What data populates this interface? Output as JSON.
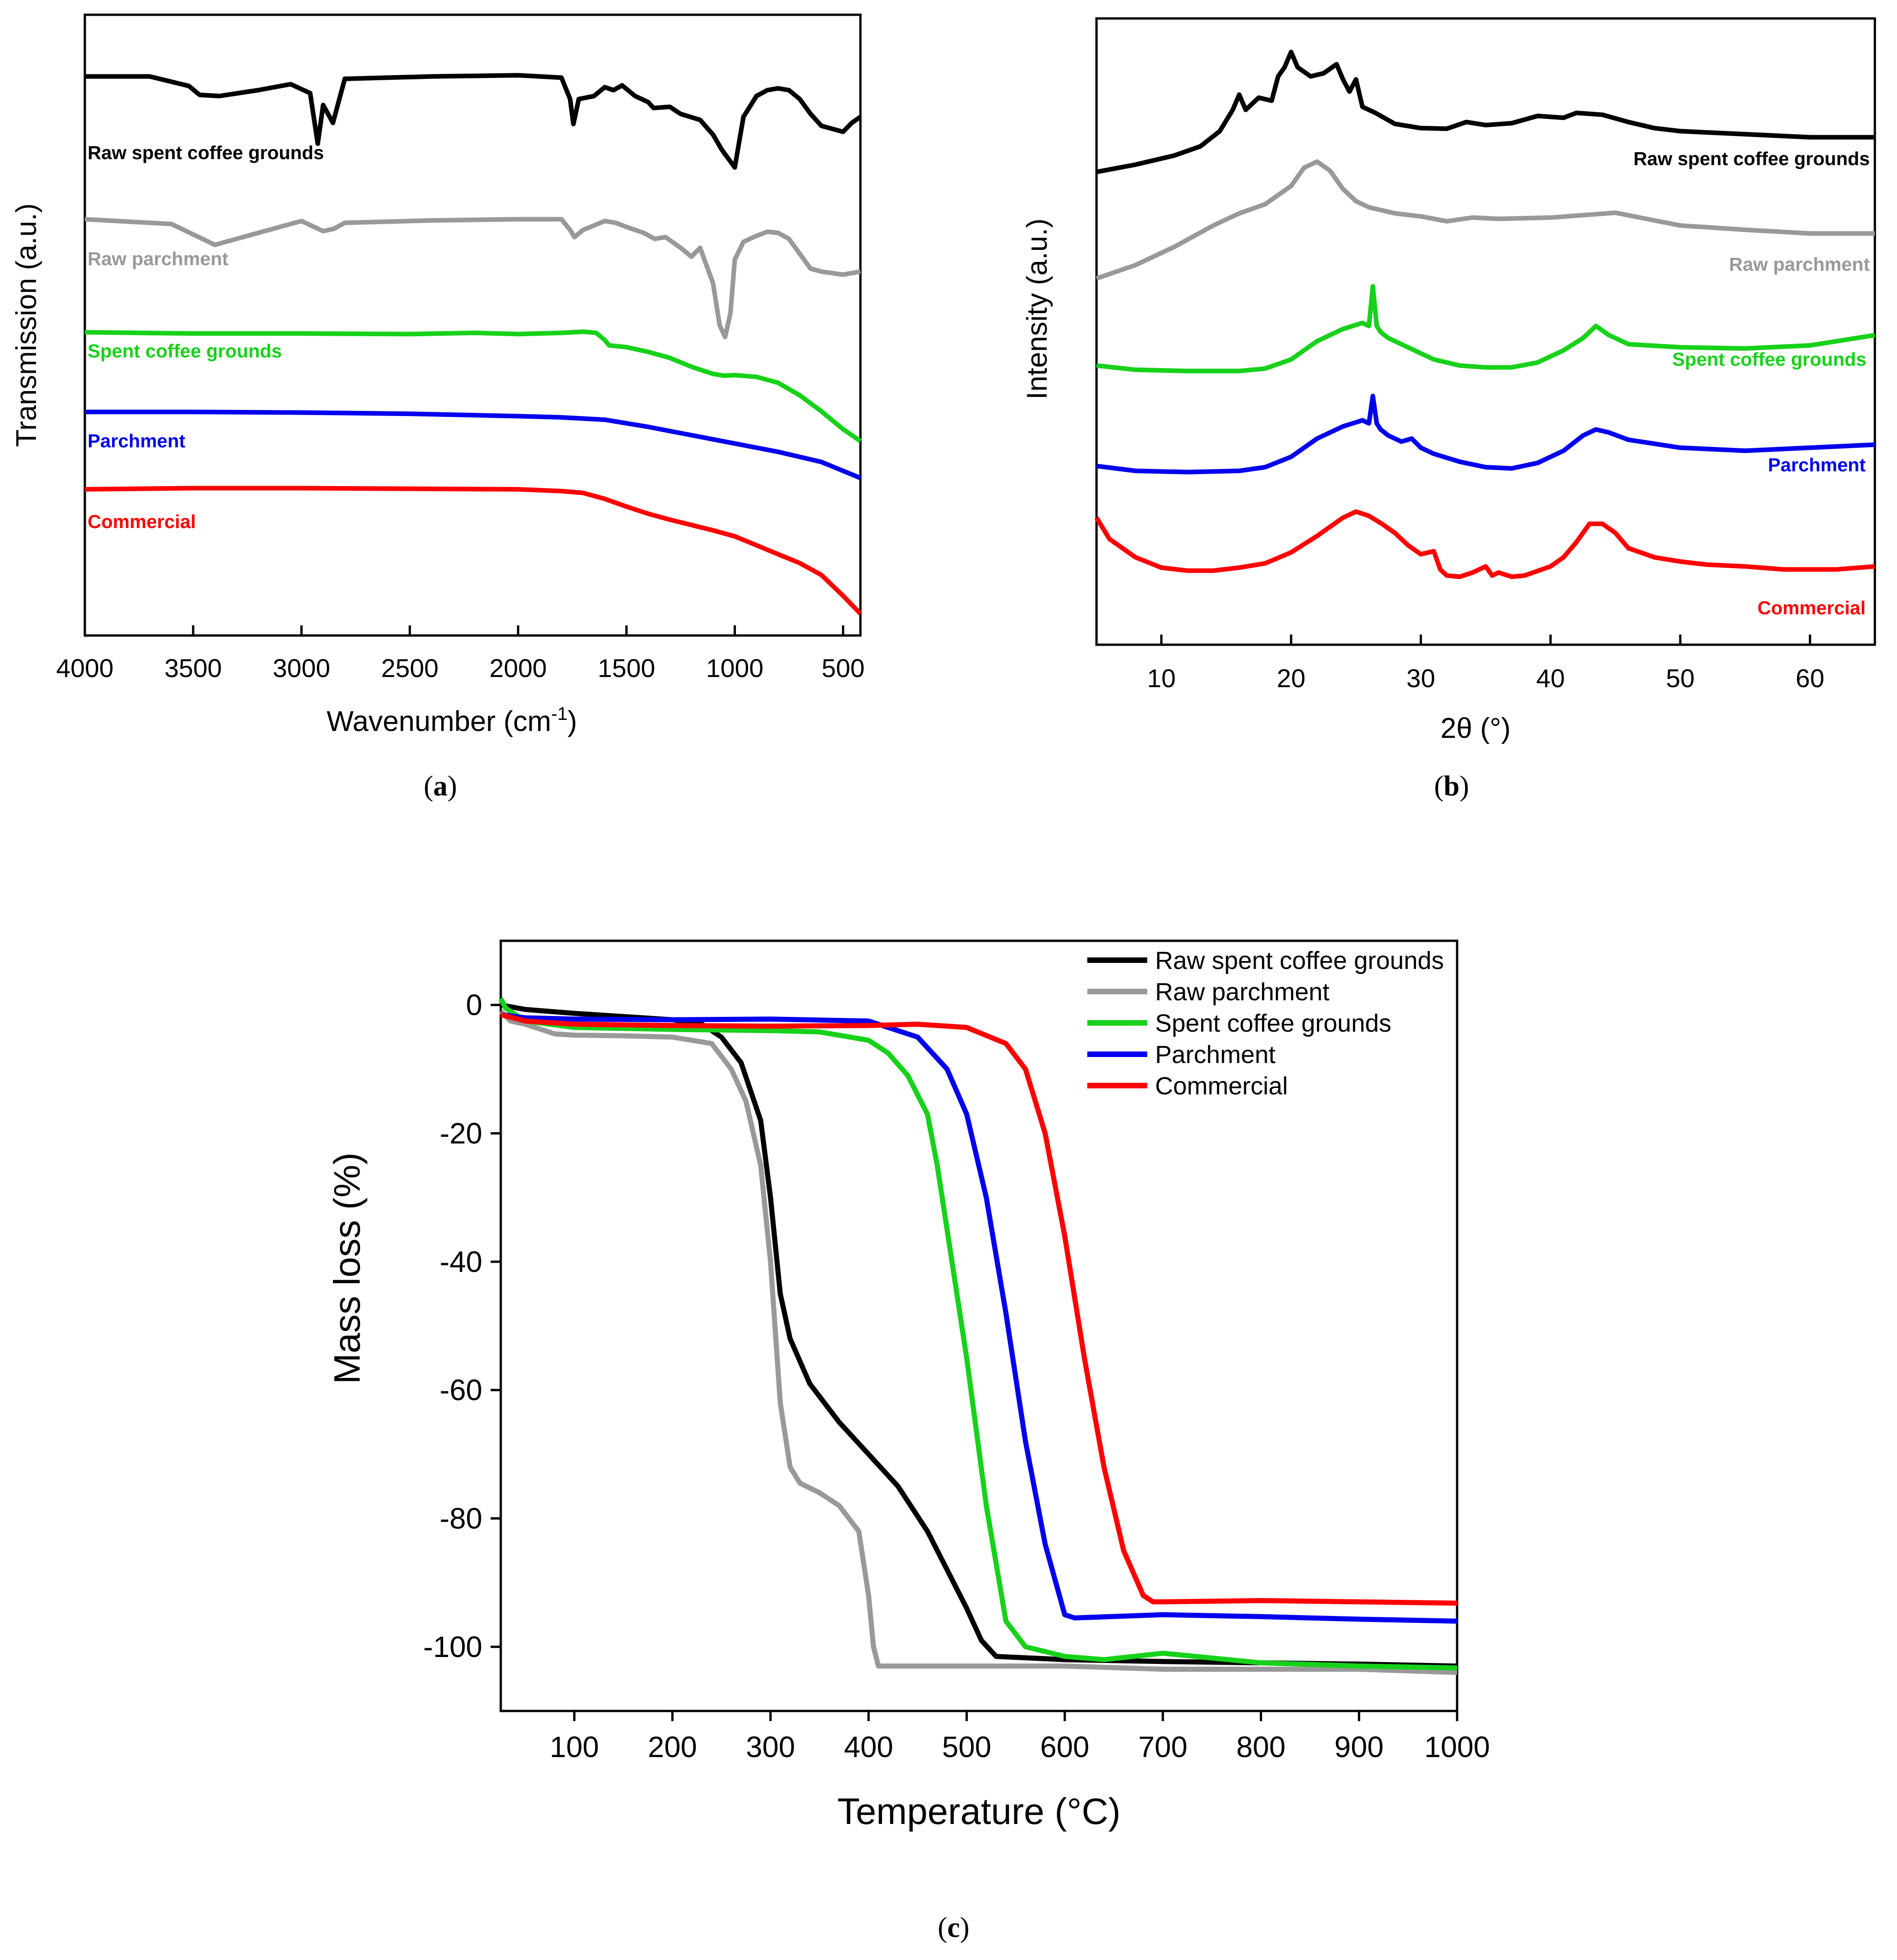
{
  "chart_data": [
    {
      "id": "a",
      "type": "line",
      "caption": {
        "open": "(",
        "letter": "a",
        "close": ")"
      },
      "xlabel": {
        "main": "Wavenumber (cm",
        "sup": "-1",
        "end": ")"
      },
      "ylabel": "Transmission (a.u.)",
      "xlim": [
        4000,
        420
      ],
      "x_ticks": [
        4000,
        3500,
        3000,
        2500,
        2000,
        1500,
        1000,
        500
      ],
      "ylim": [
        0,
        100
      ],
      "series": [
        {
          "name": "Raw spent coffee grounds",
          "color": "#000000",
          "label_color": "#000000",
          "x": [
            4000,
            3700,
            3520,
            3470,
            3380,
            3200,
            3050,
            2960,
            2925,
            2900,
            2855,
            2800,
            2400,
            2000,
            1800,
            1760,
            1745,
            1720,
            1650,
            1600,
            1560,
            1520,
            1460,
            1400,
            1375,
            1300,
            1250,
            1160,
            1100,
            1060,
            1030,
            1000,
            960,
            900,
            850,
            800,
            750,
            700,
            650,
            600,
            550,
            500,
            460,
            420
          ],
          "y": [
            91.8,
            91.8,
            90.2,
            88.7,
            88.5,
            89.5,
            90.5,
            89,
            80.5,
            87,
            84,
            91.4,
            91.8,
            92,
            91.6,
            88,
            83.8,
            88,
            88.5,
            90,
            89.5,
            90.3,
            88.5,
            87.5,
            86.5,
            86.7,
            85.5,
            84.5,
            82,
            79.5,
            78,
            76.5,
            85,
            88.5,
            89.5,
            89.8,
            89.5,
            88,
            85.5,
            83.5,
            83,
            82.5,
            84,
            85
          ]
        },
        {
          "name": "Raw parchment",
          "color": "#999999",
          "label_color": "#999999",
          "x": [
            4000,
            3600,
            3400,
            3200,
            3000,
            2900,
            2850,
            2800,
            2400,
            2000,
            1800,
            1760,
            1740,
            1700,
            1600,
            1550,
            1500,
            1420,
            1370,
            1320,
            1250,
            1200,
            1160,
            1100,
            1070,
            1045,
            1020,
            1000,
            960,
            900,
            850,
            800,
            750,
            700,
            650,
            600,
            500,
            420
          ],
          "y": [
            67.8,
            67,
            63.5,
            65.5,
            67.5,
            65.8,
            66.2,
            67.2,
            67.6,
            67.8,
            67.8,
            66,
            64.8,
            66,
            67.5,
            67.2,
            66.5,
            65.5,
            64.5,
            64.8,
            63,
            61.5,
            63,
            57,
            50,
            48,
            52,
            61,
            64,
            65,
            65.7,
            65.5,
            64.5,
            62,
            59.5,
            59,
            58.5,
            59
          ]
        },
        {
          "name": "Spent coffee grounds",
          "color": "#17d11a",
          "label_color": "#17d11a",
          "x": [
            4000,
            3500,
            3000,
            2500,
            2200,
            2000,
            1800,
            1700,
            1640,
            1600,
            1580,
            1500,
            1400,
            1300,
            1200,
            1100,
            1050,
            1000,
            900,
            800,
            700,
            600,
            500,
            420
          ],
          "y": [
            48.8,
            48.6,
            48.6,
            48.5,
            48.7,
            48.5,
            48.7,
            48.9,
            48.7,
            47.5,
            46.6,
            46.3,
            45.5,
            44.5,
            43,
            41.8,
            41.5,
            41.6,
            41.3,
            40.3,
            38.2,
            35.5,
            32.5,
            30.5
          ]
        },
        {
          "name": "Parchment",
          "color": "#0000ee",
          "label_color": "#0000ee",
          "x": [
            4000,
            3500,
            3000,
            2500,
            2000,
            1800,
            1600,
            1400,
            1200,
            1000,
            800,
            600,
            420
          ],
          "y": [
            35.4,
            35.4,
            35.3,
            35.1,
            34.7,
            34.5,
            34.1,
            32.9,
            31.5,
            30.1,
            28.7,
            27,
            24.3
          ]
        },
        {
          "name": "Commercial",
          "color": "#ff0000",
          "label_color": "#ff0000",
          "x": [
            4000,
            3500,
            3000,
            2500,
            2000,
            1800,
            1700,
            1600,
            1500,
            1400,
            1300,
            1200,
            1100,
            1000,
            900,
            800,
            700,
            600,
            500,
            420
          ],
          "y": [
            22.4,
            22.6,
            22.6,
            22.5,
            22.4,
            22.1,
            21.8,
            20.8,
            19.5,
            18.3,
            17.3,
            16.4,
            15.5,
            14.5,
            13,
            11.5,
            10,
            8,
            4.5,
            1.5
          ]
        }
      ]
    },
    {
      "id": "b",
      "type": "line",
      "caption": {
        "open": "(",
        "letter": "b",
        "close": ")"
      },
      "xlabel": "2θ (°)",
      "ylabel": "Intensity (a.u.)",
      "xlim": [
        5,
        65
      ],
      "x_ticks": [
        10,
        20,
        30,
        40,
        50,
        60
      ],
      "ylim": [
        0,
        100
      ],
      "series": [
        {
          "name": "Raw spent coffee grounds",
          "color": "#000000",
          "label_color": "#000000",
          "x": [
            5,
            8,
            11,
            13,
            14.5,
            15.5,
            16,
            16.5,
            17.5,
            18.5,
            19,
            19.5,
            20,
            20.5,
            21.5,
            22.5,
            23.5,
            24,
            24.5,
            25,
            25.5,
            26.5,
            28,
            30,
            32,
            33.5,
            35,
            37,
            39,
            41,
            42,
            44,
            46,
            48,
            50,
            55,
            60,
            65
          ],
          "y": [
            76.3,
            77.5,
            79,
            80.5,
            83,
            86.5,
            89,
            86.5,
            88.5,
            88,
            92,
            93.5,
            96,
            93.5,
            92,
            92.5,
            94,
            91.5,
            89.5,
            91.5,
            87,
            86,
            84.2,
            83.5,
            83.4,
            84.5,
            84,
            84.3,
            85.5,
            85.2,
            86,
            85.7,
            84.5,
            83.5,
            83,
            82.5,
            82,
            82
          ]
        },
        {
          "name": "Raw parchment",
          "color": "#999999",
          "label_color": "#999999",
          "x": [
            5,
            8,
            11,
            14,
            16,
            18,
            20,
            21,
            22,
            23,
            24,
            25,
            26,
            28,
            30,
            32,
            34,
            36,
            40,
            45,
            50,
            55,
            60,
            65
          ],
          "y": [
            58.8,
            61,
            64,
            67.5,
            69.5,
            71,
            74,
            77,
            78,
            76.5,
            73.5,
            71.5,
            70.5,
            69.5,
            69,
            68.2,
            68.8,
            68.6,
            68.8,
            69.6,
            67.5,
            66.8,
            66.2,
            66.2
          ]
        },
        {
          "name": "Spent coffee grounds",
          "color": "#17d11a",
          "label_color": "#17d11a",
          "x": [
            5,
            8,
            12,
            16,
            18,
            20,
            21,
            22,
            24,
            25.5,
            26,
            26.3,
            26.6,
            26.9,
            27.5,
            28.5,
            29.5,
            31,
            33,
            35,
            37,
            39,
            41,
            42.5,
            43.5,
            44.5,
            46,
            50,
            55,
            60,
            65
          ],
          "y": [
            44.5,
            43.8,
            43.6,
            43.6,
            44,
            45.5,
            47,
            48.5,
            50.5,
            51.5,
            51,
            57.5,
            51,
            50,
            49,
            48,
            47,
            45.5,
            44.5,
            44.2,
            44.2,
            45,
            47,
            49,
            51,
            49.5,
            48,
            47.5,
            47.3,
            47.8,
            49.5
          ]
        },
        {
          "name": "Parchment",
          "color": "#0000ee",
          "label_color": "#0000ee",
          "x": [
            5,
            8,
            12,
            16,
            18,
            20,
            21,
            22,
            24,
            25.5,
            26,
            26.3,
            26.6,
            26.9,
            27.5,
            28.5,
            29.3,
            30,
            31,
            33,
            35,
            37,
            39,
            41,
            42.5,
            43.5,
            44.5,
            46,
            50,
            55,
            60,
            65
          ],
          "y": [
            28,
            27.2,
            27,
            27.2,
            27.8,
            29.5,
            31,
            32.5,
            34.5,
            35.5,
            35,
            39.5,
            35,
            34,
            33,
            32,
            32.5,
            31,
            30,
            28.7,
            27.8,
            27.6,
            28.5,
            30.5,
            33,
            34,
            33.5,
            32.3,
            31,
            30.5,
            31,
            31.5
          ]
        },
        {
          "name": "Commercial",
          "color": "#ff0000",
          "label_color": "#ff0000",
          "x": [
            5,
            6,
            8,
            10,
            12,
            14,
            16,
            18,
            20,
            22,
            24,
            25,
            26,
            27,
            28,
            29,
            30,
            31,
            31.5,
            32,
            33,
            34,
            35,
            35.5,
            36,
            37,
            38,
            40,
            41,
            42,
            43,
            44,
            45,
            46,
            48,
            50,
            52,
            55,
            58,
            62,
            65
          ],
          "y": [
            19.5,
            16,
            13,
            11.3,
            10.8,
            10.8,
            11.3,
            12,
            13.8,
            16.5,
            19.5,
            20.5,
            19.8,
            18.5,
            17,
            15,
            13.5,
            14,
            11,
            10,
            9.8,
            10.5,
            11.5,
            10,
            10.5,
            9.8,
            10,
            11.5,
            13,
            15.5,
            18.5,
            18.5,
            17,
            14.5,
            13,
            12.3,
            11.8,
            11.5,
            11,
            11,
            11.5
          ]
        }
      ]
    },
    {
      "id": "c",
      "type": "line",
      "caption": {
        "open": "(",
        "letter": "c",
        "close": ")"
      },
      "xlabel": "Temperature (°C)",
      "ylabel": "Mass loss (%)",
      "xlim": [
        25,
        1000
      ],
      "ylim": [
        -110,
        10
      ],
      "x_ticks": [
        100,
        200,
        300,
        400,
        500,
        600,
        700,
        800,
        900,
        1000
      ],
      "y_ticks": [
        0,
        -20,
        -40,
        -60,
        -80,
        -100
      ],
      "legend": "top-right",
      "series": [
        {
          "name": "Raw spent coffee grounds",
          "color": "#000000",
          "x": [
            25,
            50,
            100,
            150,
            200,
            230,
            250,
            270,
            290,
            300,
            310,
            320,
            340,
            370,
            400,
            430,
            460,
            480,
            500,
            515,
            530,
            600,
            700,
            800,
            900,
            1000
          ],
          "y": [
            0,
            -0.7,
            -1.3,
            -1.8,
            -2.3,
            -3,
            -5,
            -9,
            -18,
            -30,
            -45,
            -52,
            -59,
            -65,
            -70,
            -75,
            -82,
            -88,
            -94,
            -99,
            -101.5,
            -102,
            -102.3,
            -102.5,
            -102.7,
            -103
          ]
        },
        {
          "name": "Raw parchment",
          "color": "#999999",
          "x": [
            25,
            35,
            50,
            80,
            100,
            150,
            200,
            240,
            260,
            275,
            290,
            300,
            310,
            320,
            330,
            350,
            370,
            390,
            400,
            405,
            410,
            500,
            600,
            700,
            800,
            900,
            1000
          ],
          "y": [
            -1,
            -2.5,
            -3,
            -4.5,
            -4.7,
            -4.8,
            -5,
            -6,
            -10,
            -15,
            -25,
            -40,
            -62,
            -72,
            -74.5,
            -76,
            -78,
            -82,
            -92,
            -100,
            -103,
            -103,
            -103,
            -103.5,
            -103.5,
            -103.5,
            -104
          ]
        },
        {
          "name": "Spent coffee grounds",
          "color": "#17d11a",
          "x": [
            25,
            30,
            40,
            50,
            100,
            200,
            300,
            350,
            400,
            420,
            440,
            460,
            470,
            480,
            500,
            520,
            540,
            560,
            600,
            640,
            700,
            800,
            900,
            1000
          ],
          "y": [
            1,
            -0.5,
            -1.5,
            -2.5,
            -3.5,
            -3.8,
            -4,
            -4.2,
            -5.5,
            -7.5,
            -11,
            -17,
            -25,
            -35,
            -55,
            -78,
            -96,
            -100,
            -101.5,
            -102,
            -101,
            -102.5,
            -103,
            -103.3
          ]
        },
        {
          "name": "Parchment",
          "color": "#0000ee",
          "x": [
            25,
            50,
            100,
            200,
            300,
            400,
            450,
            480,
            500,
            520,
            540,
            560,
            580,
            600,
            610,
            700,
            800,
            900,
            1000
          ],
          "y": [
            -1.5,
            -2,
            -2.2,
            -2.3,
            -2.2,
            -2.5,
            -5,
            -10,
            -17,
            -30,
            -48,
            -68,
            -84,
            -95,
            -95.5,
            -95,
            -95.3,
            -95.7,
            -96
          ]
        },
        {
          "name": "Commercial",
          "color": "#ff0000",
          "x": [
            25,
            50,
            100,
            200,
            300,
            400,
            450,
            500,
            540,
            560,
            580,
            600,
            620,
            640,
            660,
            680,
            690,
            700,
            800,
            900,
            1000
          ],
          "y": [
            -1.5,
            -2.5,
            -3,
            -3.2,
            -3.3,
            -3.2,
            -3,
            -3.5,
            -6,
            -10,
            -20,
            -36,
            -55,
            -72,
            -85,
            -92,
            -93,
            -93,
            -92.8,
            -93,
            -93.2
          ]
        }
      ]
    }
  ]
}
